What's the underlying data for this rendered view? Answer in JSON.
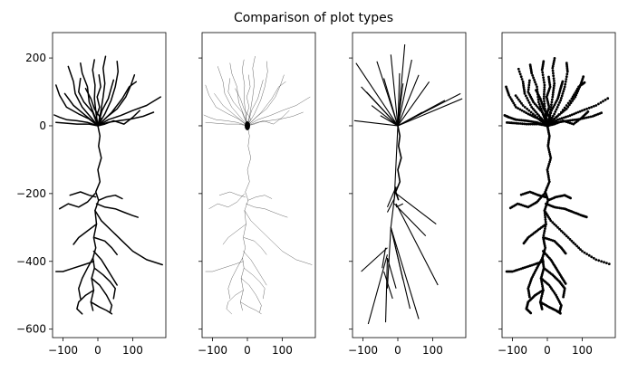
{
  "chart_data": {
    "type": "line",
    "title": "Comparison of plot types",
    "panel_count": 4,
    "panels": [
      {
        "style": "line",
        "description_in_plot": "",
        "color": "#000000",
        "line_width": 1.5
      },
      {
        "style": "thin-line-with-soma",
        "description_in_plot": "",
        "color": "#000000",
        "line_width": 0.3
      },
      {
        "style": "straight-segments",
        "description_in_plot": "",
        "color": "#000000",
        "line_width": 1.1
      },
      {
        "style": "points",
        "description_in_plot": "",
        "color": "#000000",
        "marker_size": 1.4
      }
    ],
    "xlim": [
      -130,
      195
    ],
    "ylim": [
      -625,
      275
    ],
    "x_ticks": [
      -100,
      0,
      100
    ],
    "x_tick_labels": [
      "−100",
      "0",
      "100"
    ],
    "y_ticks": [
      200,
      0,
      -200,
      -400,
      -600
    ],
    "y_tick_labels": [
      "200",
      "0",
      "−200",
      "−400",
      "−600"
    ],
    "shared_y_axis": true,
    "grid": false,
    "soma": {
      "x": 0,
      "y": 0
    },
    "apical_trunk": [
      [
        0,
        0
      ],
      [
        6,
        -30
      ],
      [
        2,
        -60
      ],
      [
        10,
        -95
      ],
      [
        0,
        -130
      ],
      [
        6,
        -165
      ],
      [
        -6,
        -195
      ],
      [
        2,
        -220
      ],
      [
        -8,
        -250
      ],
      [
        -4,
        -290
      ],
      [
        -12,
        -330
      ],
      [
        -6,
        -360
      ],
      [
        -14,
        -390
      ],
      [
        -10,
        -420
      ],
      [
        -18,
        -450
      ],
      [
        -12,
        -485
      ],
      [
        -20,
        -520
      ],
      [
        -14,
        -545
      ]
    ],
    "dendrites": [
      [
        [
          0,
          0
        ],
        [
          -25,
          20
        ],
        [
          -55,
          35
        ],
        [
          -90,
          55
        ],
        [
          -110,
          90
        ],
        [
          -120,
          120
        ]
      ],
      [
        [
          0,
          0
        ],
        [
          -20,
          25
        ],
        [
          -45,
          55
        ],
        [
          -65,
          95
        ],
        [
          -70,
          130
        ],
        [
          -85,
          175
        ]
      ],
      [
        [
          0,
          0
        ],
        [
          -10,
          30
        ],
        [
          -25,
          70
        ],
        [
          -30,
          115
        ],
        [
          -45,
          155
        ],
        [
          -50,
          185
        ]
      ],
      [
        [
          0,
          0
        ],
        [
          -5,
          35
        ],
        [
          -10,
          80
        ],
        [
          -8,
          120
        ],
        [
          -15,
          165
        ],
        [
          -10,
          195
        ]
      ],
      [
        [
          0,
          0
        ],
        [
          8,
          40
        ],
        [
          15,
          85
        ],
        [
          20,
          125
        ],
        [
          15,
          170
        ],
        [
          22,
          205
        ]
      ],
      [
        [
          0,
          0
        ],
        [
          20,
          35
        ],
        [
          38,
          75
        ],
        [
          50,
          115
        ],
        [
          58,
          160
        ],
        [
          55,
          190
        ]
      ],
      [
        [
          0,
          0
        ],
        [
          25,
          25
        ],
        [
          55,
          50
        ],
        [
          80,
          85
        ],
        [
          95,
          120
        ],
        [
          105,
          150
        ]
      ],
      [
        [
          0,
          0
        ],
        [
          30,
          18
        ],
        [
          65,
          30
        ],
        [
          100,
          45
        ],
        [
          140,
          60
        ],
        [
          180,
          85
        ]
      ],
      [
        [
          0,
          0
        ],
        [
          28,
          10
        ],
        [
          60,
          15
        ],
        [
          95,
          20
        ],
        [
          130,
          28
        ],
        [
          160,
          40
        ]
      ],
      [
        [
          0,
          0
        ],
        [
          -30,
          10
        ],
        [
          -60,
          15
        ],
        [
          -90,
          18
        ],
        [
          -110,
          25
        ],
        [
          -125,
          32
        ]
      ],
      [
        [
          0,
          0
        ],
        [
          -25,
          5
        ],
        [
          -60,
          5
        ],
        [
          -95,
          8
        ],
        [
          -120,
          10
        ]
      ],
      [
        [
          0,
          0
        ],
        [
          20,
          5
        ],
        [
          45,
          15
        ],
        [
          75,
          5
        ],
        [
          100,
          25
        ],
        [
          120,
          45
        ]
      ],
      [
        [
          0,
          0
        ],
        [
          -15,
          40
        ],
        [
          -40,
          70
        ],
        [
          -55,
          100
        ],
        [
          -50,
          140
        ]
      ],
      [
        [
          0,
          0
        ],
        [
          12,
          45
        ],
        [
          30,
          80
        ],
        [
          38,
          110
        ],
        [
          45,
          135
        ]
      ],
      [
        [
          0,
          0
        ],
        [
          -35,
          30
        ],
        [
          -70,
          60
        ],
        [
          -95,
          95
        ]
      ],
      [
        [
          0,
          0
        ],
        [
          40,
          40
        ],
        [
          70,
          80
        ],
        [
          90,
          115
        ],
        [
          110,
          130
        ]
      ],
      [
        [
          0,
          0
        ],
        [
          -5,
          25
        ],
        [
          5,
          55
        ],
        [
          -2,
          85
        ],
        [
          8,
          115
        ],
        [
          3,
          150
        ]
      ],
      [
        [
          0,
          0
        ],
        [
          10,
          20
        ],
        [
          -10,
          50
        ],
        [
          -20,
          80
        ],
        [
          -35,
          110
        ]
      ],
      [
        [
          -8,
          -200
        ],
        [
          -30,
          -225
        ],
        [
          -55,
          -240
        ],
        [
          -85,
          -230
        ],
        [
          -110,
          -245
        ]
      ],
      [
        [
          -4,
          -230
        ],
        [
          20,
          -240
        ],
        [
          50,
          -245
        ],
        [
          75,
          -255
        ],
        [
          100,
          -265
        ],
        [
          115,
          -270
        ]
      ],
      [
        [
          -6,
          -210
        ],
        [
          -25,
          -205
        ],
        [
          -50,
          -195
        ],
        [
          -80,
          -205
        ]
      ],
      [
        [
          2,
          -220
        ],
        [
          25,
          -210
        ],
        [
          50,
          -205
        ],
        [
          70,
          -215
        ]
      ],
      [
        [
          -8,
          -250
        ],
        [
          10,
          -280
        ],
        [
          40,
          -310
        ],
        [
          70,
          -340
        ],
        [
          100,
          -370
        ],
        [
          140,
          -395
        ],
        [
          185,
          -410
        ]
      ],
      [
        [
          -4,
          -290
        ],
        [
          -30,
          -310
        ],
        [
          -55,
          -330
        ],
        [
          -70,
          -350
        ]
      ],
      [
        [
          -10,
          -330
        ],
        [
          20,
          -340
        ],
        [
          40,
          -360
        ],
        [
          55,
          -380
        ]
      ],
      [
        [
          -12,
          -400
        ],
        [
          -40,
          -410
        ],
        [
          -70,
          -420
        ],
        [
          -100,
          -430
        ],
        [
          -120,
          -430
        ]
      ],
      [
        [
          -10,
          -420
        ],
        [
          15,
          -440
        ],
        [
          35,
          -460
        ],
        [
          50,
          -480
        ],
        [
          45,
          -510
        ]
      ],
      [
        [
          -14,
          -390
        ],
        [
          -30,
          -420
        ],
        [
          -45,
          -450
        ],
        [
          -55,
          -480
        ],
        [
          -50,
          -510
        ]
      ],
      [
        [
          -18,
          -450
        ],
        [
          5,
          -470
        ],
        [
          25,
          -500
        ],
        [
          40,
          -530
        ],
        [
          35,
          -550
        ]
      ],
      [
        [
          -12,
          -485
        ],
        [
          -35,
          -500
        ],
        [
          -55,
          -520
        ],
        [
          -60,
          -540
        ],
        [
          -45,
          -555
        ]
      ],
      [
        [
          -20,
          -520
        ],
        [
          5,
          -535
        ],
        [
          25,
          -545
        ],
        [
          40,
          -555
        ]
      ],
      [
        [
          -12,
          -370
        ],
        [
          10,
          -395
        ],
        [
          25,
          -420
        ],
        [
          40,
          -445
        ],
        [
          55,
          -470
        ]
      ]
    ],
    "straight_segments": [
      [
        [
          0,
          0
        ],
        [
          -120,
          185
        ]
      ],
      [
        [
          0,
          0
        ],
        [
          -90,
          100
        ]
      ],
      [
        [
          0,
          0
        ],
        [
          -60,
          190
        ]
      ],
      [
        [
          0,
          0
        ],
        [
          -40,
          140
        ]
      ],
      [
        [
          0,
          0
        ],
        [
          -20,
          210
        ]
      ],
      [
        [
          0,
          0
        ],
        [
          5,
          155
        ]
      ],
      [
        [
          0,
          0
        ],
        [
          20,
          240
        ]
      ],
      [
        [
          0,
          0
        ],
        [
          40,
          195
        ]
      ],
      [
        [
          0,
          0
        ],
        [
          60,
          150
        ]
      ],
      [
        [
          0,
          0
        ],
        [
          90,
          130
        ]
      ],
      [
        [
          0,
          0
        ],
        [
          135,
          75
        ]
      ],
      [
        [
          0,
          0
        ],
        [
          180,
          95
        ]
      ],
      [
        [
          0,
          0
        ],
        [
          185,
          80
        ]
      ],
      [
        [
          0,
          0
        ],
        [
          -125,
          15
        ]
      ],
      [
        [
          0,
          0
        ],
        [
          -105,
          115
        ]
      ],
      [
        [
          0,
          0
        ],
        [
          15,
          125
        ]
      ],
      [
        [
          0,
          0
        ],
        [
          -50,
          30
        ]
      ],
      [
        [
          0,
          0
        ],
        [
          70,
          40
        ]
      ],
      [
        [
          0,
          0
        ],
        [
          -75,
          60
        ]
      ],
      [
        [
          0,
          0
        ],
        [
          -10,
          -215
        ]
      ],
      [
        [
          -10,
          -215
        ],
        [
          -20,
          -300
        ]
      ],
      [
        [
          -20,
          -300
        ],
        [
          -30,
          -480
        ]
      ],
      [
        [
          -10,
          -215
        ],
        [
          -30,
          -255
        ]
      ],
      [
        [
          -10,
          -215
        ],
        [
          -5,
          -180
        ]
      ],
      [
        [
          -5,
          -180
        ],
        [
          -30,
          -240
        ]
      ],
      [
        [
          -5,
          -240
        ],
        [
          15,
          -230
        ]
      ],
      [
        [
          -5,
          -200
        ],
        [
          110,
          -290
        ]
      ],
      [
        [
          -10,
          -230
        ],
        [
          80,
          -325
        ]
      ],
      [
        [
          -5,
          -230
        ],
        [
          115,
          -470
        ]
      ],
      [
        [
          -20,
          -300
        ],
        [
          60,
          -570
        ]
      ],
      [
        [
          -20,
          -300
        ],
        [
          35,
          -540
        ]
      ],
      [
        [
          -20,
          -300
        ],
        [
          15,
          -455
        ]
      ],
      [
        [
          -30,
          -360
        ],
        [
          -105,
          -430
        ]
      ],
      [
        [
          -30,
          -380
        ],
        [
          -85,
          -585
        ]
      ],
      [
        [
          -30,
          -390
        ],
        [
          -35,
          -580
        ]
      ],
      [
        [
          -40,
          -430
        ],
        [
          -15,
          -510
        ]
      ],
      [
        [
          -35,
          -360
        ],
        [
          -45,
          -420
        ]
      ],
      [
        [
          -30,
          -390
        ],
        [
          -5,
          -480
        ]
      ]
    ]
  }
}
